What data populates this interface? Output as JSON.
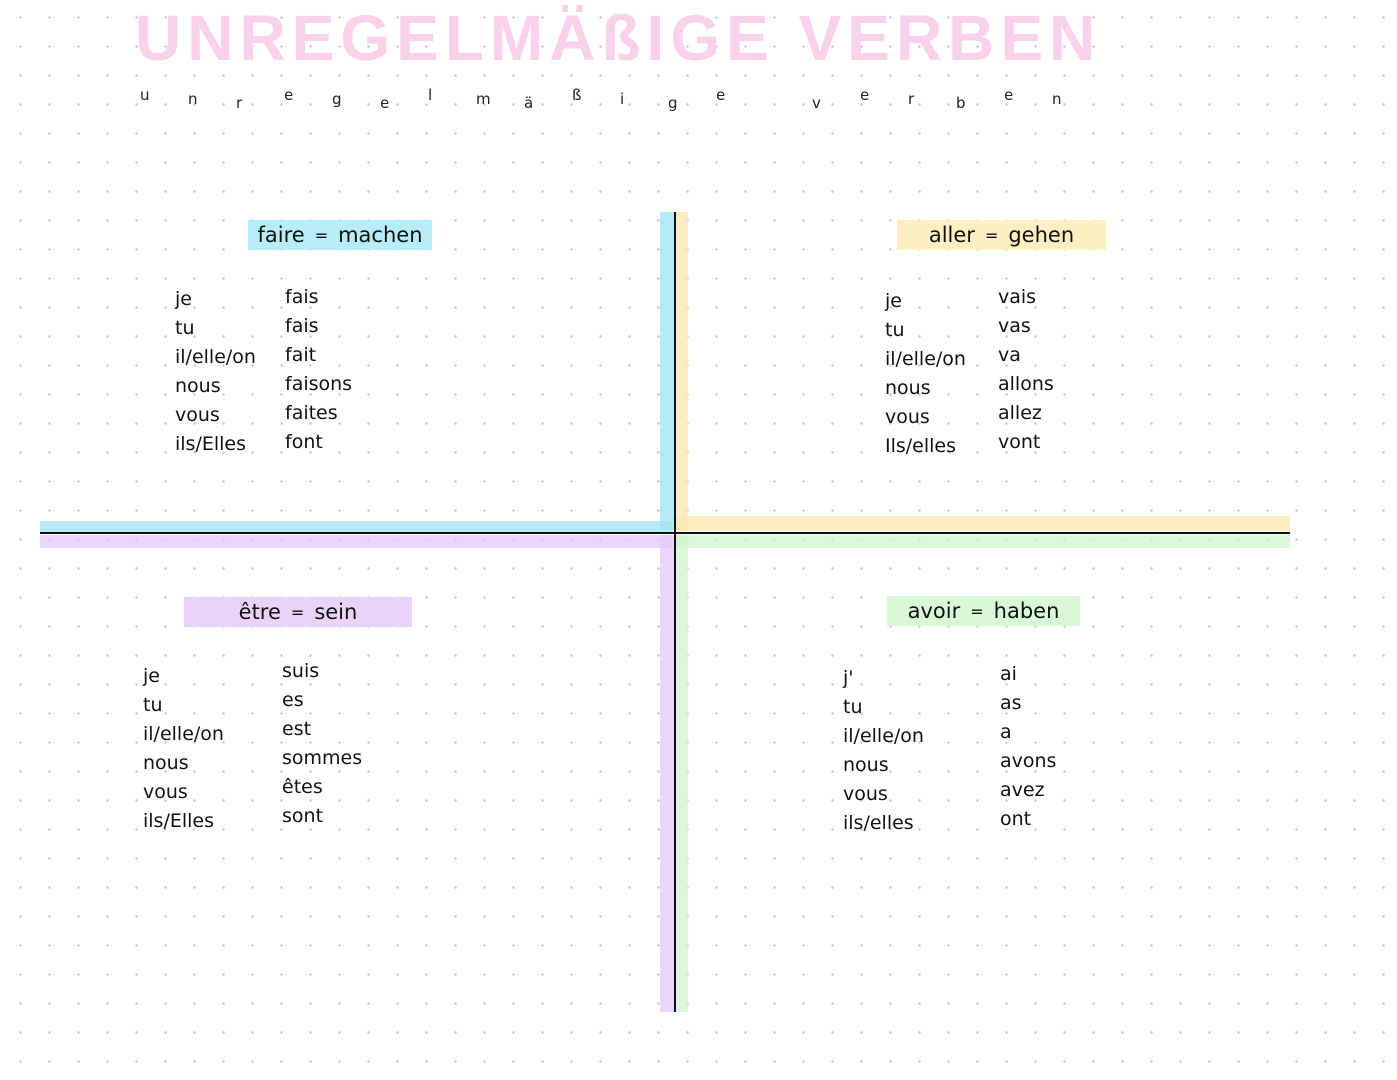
{
  "title": {
    "heading": "UNREGELMÄßIGE VERBEN",
    "subtitle_letters": [
      "u",
      "n",
      "r",
      "e",
      "g",
      "e",
      "l",
      "m",
      "ä",
      "ß",
      "i",
      "g",
      "e",
      " ",
      "v",
      "e",
      "r",
      "b",
      "e",
      "n"
    ],
    "color": "#fad1ea"
  },
  "quadrants": [
    {
      "verb": "faire",
      "eq": "=",
      "meaning": "machen",
      "color": "#b7ecf9",
      "pronouns": [
        "je",
        "tu",
        "il/elle/on",
        "nous",
        "vous",
        "ils/Elles"
      ],
      "forms": [
        "fais",
        "fais",
        "fait",
        "faisons",
        "faites",
        "font"
      ]
    },
    {
      "verb": "aller",
      "eq": "=",
      "meaning": "gehen",
      "color": "#fdefc0",
      "pronouns": [
        "je",
        "tu",
        "il/elle/on",
        "nous",
        "vous",
        "Ils/elles"
      ],
      "forms": [
        "vais",
        "vas",
        "va",
        "allons",
        "allez",
        "vont"
      ]
    },
    {
      "verb": "être",
      "eq": "=",
      "meaning": "sein",
      "color": "#ead3f8",
      "pronouns": [
        "je",
        "tu",
        "il/elle/on",
        "nous",
        "vous",
        "ils/Elles"
      ],
      "forms": [
        "suis",
        "es",
        "est",
        "sommes",
        "êtes",
        "sont"
      ]
    },
    {
      "verb": "avoir",
      "eq": "=",
      "meaning": "haben",
      "color": "#d8f8d6",
      "pronouns": [
        "j'",
        "tu",
        "il/elle/on",
        "nous",
        "vous",
        "ils/elles"
      ],
      "forms": [
        "ai",
        "as",
        "a",
        "avons",
        "avez",
        "ont"
      ]
    }
  ]
}
